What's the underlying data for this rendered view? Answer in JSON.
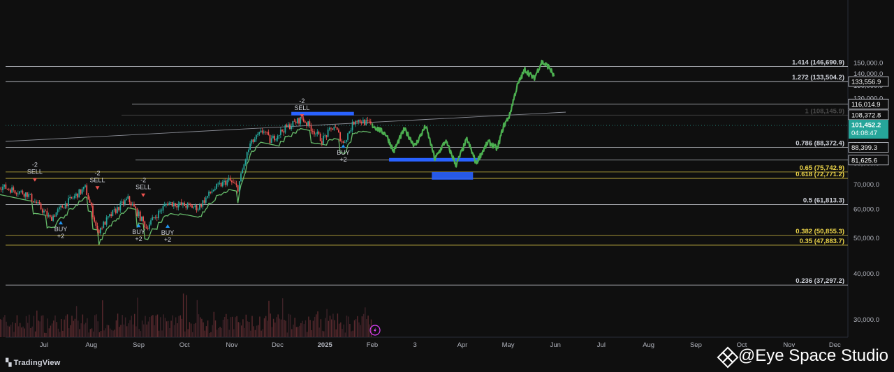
{
  "chart_data": {
    "type": "line",
    "y_scale": "log",
    "ylim": [
      25000,
      155000
    ],
    "x_ticks": [
      "Jul",
      "Aug",
      "Sep",
      "Oct",
      "Nov",
      "Dec",
      "2025",
      "Feb",
      "3",
      "Apr",
      "May",
      "Jun",
      "Jul",
      "Aug",
      "Sep",
      "Oct",
      "Nov",
      "Dec"
    ],
    "y_ticks": [
      "150,000.0",
      "140,000.0",
      "130,000.0",
      "120,000.0",
      "110,000.0",
      "90,000.0",
      "80,000.0",
      "70,000.0",
      "60,000.0",
      "50,000.0",
      "40,000.0",
      "30,000.0"
    ],
    "fib_levels": [
      {
        "label": "1.414 (146,690.9)",
        "value": 146690.9,
        "color": "#d1d4dc"
      },
      {
        "label": "1.272 (133,504.2)",
        "value": 133504.2,
        "color": "#d1d4dc"
      },
      {
        "label": "1 (108,145.9)",
        "value": 108145.9,
        "color": "#4a4a4a"
      },
      {
        "label": "0.786 (88,372.4)",
        "value": 88372.4,
        "color": "#d1d4dc"
      },
      {
        "label": "0.65 (75,742.9)",
        "value": 75742.9,
        "color": "#f0d84a"
      },
      {
        "label": "0.618 (72,771.2)",
        "value": 72771.2,
        "color": "#f0d84a"
      },
      {
        "label": "0.5 (61,813.3)",
        "value": 61813.3,
        "color": "#d1d4dc"
      },
      {
        "label": "0.382 (50,855.3)",
        "value": 50855.3,
        "color": "#f0d84a"
      },
      {
        "label": "0.35 (47,883.7)",
        "value": 47883.7,
        "color": "#f0d84a"
      },
      {
        "label": "0.236 (37,297.2)",
        "value": 37297.2,
        "color": "#d1d4dc"
      }
    ],
    "price_tags": [
      {
        "label": "133,556.9",
        "value": 133556.9
      },
      {
        "label": "116,014.9",
        "value": 116014.9
      },
      {
        "label": "108,372.8",
        "value": 108372.8
      },
      {
        "label": "88,399.3",
        "value": 88399.3
      },
      {
        "label": "81,625.6",
        "value": 81625.6
      }
    ],
    "current_price": {
      "label": "101,452.2",
      "countdown": "04:08:47",
      "value": 101452.2,
      "color": "#26a69a"
    },
    "signals": [
      {
        "type": "SELL",
        "n": "-2",
        "date": "2024-06-25",
        "price": 71000
      },
      {
        "type": "SELL",
        "n": "-2",
        "date": "2024-08-05",
        "price": 67500
      },
      {
        "type": "SELL",
        "n": "-2",
        "date": "2024-09-04",
        "price": 64500
      },
      {
        "type": "SELL",
        "n": "-2",
        "date": "2024-12-17",
        "price": 106000
      },
      {
        "type": "BUY",
        "n": "+2",
        "date": "2024-07-12",
        "price": 56000
      },
      {
        "type": "BUY",
        "n": "+2",
        "date": "2024-09-01",
        "price": 55000
      },
      {
        "type": "BUY",
        "n": "+2",
        "date": "2024-09-20",
        "price": 54800
      },
      {
        "type": "BUY",
        "n": "+2",
        "date": "2025-01-13",
        "price": 90500
      }
    ],
    "history": [
      {
        "x": "2024-06-01",
        "y": 69500
      },
      {
        "x": "2024-06-20",
        "y": 66000
      },
      {
        "x": "2024-07-05",
        "y": 56500
      },
      {
        "x": "2024-07-15",
        "y": 62000
      },
      {
        "x": "2024-07-28",
        "y": 68500
      },
      {
        "x": "2024-08-05",
        "y": 52000
      },
      {
        "x": "2024-08-15",
        "y": 58500
      },
      {
        "x": "2024-08-25",
        "y": 64000
      },
      {
        "x": "2024-09-06",
        "y": 53500
      },
      {
        "x": "2024-09-20",
        "y": 62500
      },
      {
        "x": "2024-10-10",
        "y": 60500
      },
      {
        "x": "2024-10-20",
        "y": 68000
      },
      {
        "x": "2024-10-30",
        "y": 72000
      },
      {
        "x": "2024-11-05",
        "y": 68500
      },
      {
        "x": "2024-11-13",
        "y": 90000
      },
      {
        "x": "2024-11-22",
        "y": 98500
      },
      {
        "x": "2024-11-26",
        "y": 92000
      },
      {
        "x": "2024-12-05",
        "y": 99000
      },
      {
        "x": "2024-12-17",
        "y": 106000
      },
      {
        "x": "2024-12-30",
        "y": 92500
      },
      {
        "x": "2025-01-07",
        "y": 101000
      },
      {
        "x": "2025-01-13",
        "y": 90500
      },
      {
        "x": "2025-01-21",
        "y": 105500
      },
      {
        "x": "2025-01-31",
        "y": 102000
      }
    ],
    "projection": [
      {
        "x": "2025-02-01",
        "y": 101500
      },
      {
        "x": "2025-02-10",
        "y": 96000
      },
      {
        "x": "2025-02-15",
        "y": 86000
      },
      {
        "x": "2025-02-22",
        "y": 99000
      },
      {
        "x": "2025-03-01",
        "y": 89000
      },
      {
        "x": "2025-03-08",
        "y": 101000
      },
      {
        "x": "2025-03-14",
        "y": 82000
      },
      {
        "x": "2025-03-21",
        "y": 92000
      },
      {
        "x": "2025-03-28",
        "y": 79000
      },
      {
        "x": "2025-04-04",
        "y": 93000
      },
      {
        "x": "2025-04-10",
        "y": 80000
      },
      {
        "x": "2025-04-18",
        "y": 91500
      },
      {
        "x": "2025-04-24",
        "y": 87500
      },
      {
        "x": "2025-04-28",
        "y": 101000
      },
      {
        "x": "2025-05-02",
        "y": 108000
      },
      {
        "x": "2025-05-07",
        "y": 130000
      },
      {
        "x": "2025-05-12",
        "y": 144000
      },
      {
        "x": "2025-05-18",
        "y": 136000
      },
      {
        "x": "2025-05-23",
        "y": 151000
      },
      {
        "x": "2025-05-28",
        "y": 146000
      },
      {
        "x": "2025-05-31",
        "y": 138000
      }
    ],
    "boxes": [
      {
        "x0": "2024-12-10",
        "x1": "2025-01-20",
        "y": 109200,
        "color": "#2962ff"
      },
      {
        "x0": "2025-02-12",
        "x1": "2025-04-12",
        "y": 81800,
        "color": "#2962ff"
      },
      {
        "x0": "2025-03-12",
        "x1": "2025-04-08",
        "y_top": 75700,
        "y_bottom": 72200,
        "color": "#2962ff"
      }
    ],
    "colors": {
      "bull": "#26a69a",
      "bear": "#ef5350",
      "projection": "#4caf50",
      "trail": "#66bb6a",
      "volume": "#5a2a2e"
    }
  },
  "branding": {
    "tradingview": "TradingView",
    "watermark": "@Eye Space Studio"
  }
}
